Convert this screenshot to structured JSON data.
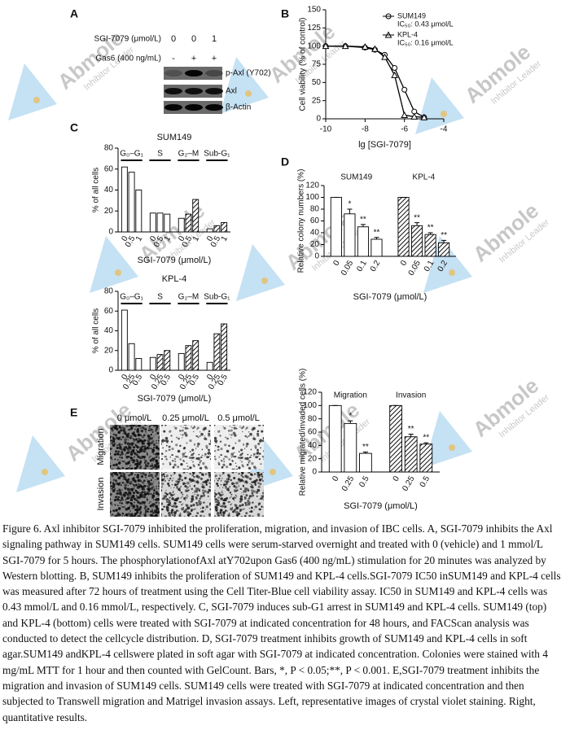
{
  "panel_a": {
    "label": "A",
    "row_labels": [
      "SGI-7079 (μmol/L)",
      "Gas6 (400 ng/mL)"
    ],
    "columns": [
      [
        "0",
        "0",
        "1"
      ],
      [
        "-",
        "+",
        "+"
      ]
    ],
    "bands": [
      "p-Axl (Y702)",
      "Axl",
      "β-Actin"
    ]
  },
  "chart_data": [
    {
      "type": "line",
      "panel_label": "B",
      "xlabel": "lg [SGI-7079]",
      "ylabel": "Cell viability (% of control)",
      "x": [
        -10,
        -9,
        -8,
        -7.5,
        -7,
        -6.5,
        -6,
        -5.5,
        -5
      ],
      "series": [
        {
          "name": "SUM149",
          "note": "IC₅₀: 0.43 μmol/L",
          "marker": "circle",
          "color": "#000000",
          "values": [
            100,
            100,
            98,
            95,
            88,
            70,
            40,
            10,
            2
          ]
        },
        {
          "name": "KPL-4",
          "note": "IC₅₀: 0.16 μmol/L",
          "marker": "triangle",
          "color": "#000000",
          "values": [
            100,
            100,
            99,
            96,
            85,
            60,
            5,
            3,
            2
          ]
        }
      ],
      "xlim": [
        -10,
        -4
      ],
      "xticks": [
        -10,
        -8,
        -6,
        -4
      ],
      "ylim": [
        0,
        150
      ],
      "yticks": [
        0,
        25,
        50,
        75,
        100,
        125,
        150
      ],
      "legend": "upper right"
    },
    {
      "type": "bar",
      "panel_label": "C",
      "title": "SUM149",
      "xlabel": "SGI-7079 (μmol/L)",
      "ylabel": "% of all cells",
      "ylim": [
        0,
        80
      ],
      "yticks": [
        0,
        20,
        40,
        60,
        80
      ],
      "group_rule": true,
      "groups": [
        {
          "name": "G₀–G₁",
          "categories": [
            "0",
            "0.5",
            "1"
          ],
          "values": [
            62,
            57,
            40
          ],
          "fills": [
            "white",
            "white",
            "white"
          ]
        },
        {
          "name": "S",
          "categories": [
            "0",
            "0.5",
            "1"
          ],
          "values": [
            18,
            18,
            17
          ],
          "fills": [
            "white",
            "white",
            "white"
          ]
        },
        {
          "name": "G₂–M",
          "categories": [
            "0",
            "0.5",
            "1"
          ],
          "values": [
            13,
            17,
            31
          ],
          "fills": [
            "white",
            "hatch",
            "hatch"
          ]
        },
        {
          "name": "Sub-G₁",
          "categories": [
            "0",
            "0.5",
            "1"
          ],
          "values": [
            3,
            6,
            9
          ],
          "fills": [
            "white",
            "hatch",
            "hatch"
          ]
        }
      ]
    },
    {
      "type": "bar",
      "title": "KPL-4",
      "xlabel": "SGI-7079 (μmol/L)",
      "ylabel": "% of all cells",
      "ylim": [
        0,
        80
      ],
      "yticks": [
        0,
        20,
        40,
        60,
        80
      ],
      "group_rule": true,
      "groups": [
        {
          "name": "G₀–G₁",
          "categories": [
            "0",
            "0.25",
            "0.5"
          ],
          "values": [
            61,
            27,
            12
          ],
          "fills": [
            "white",
            "white",
            "white"
          ]
        },
        {
          "name": "S",
          "categories": [
            "0",
            "0.25",
            "0.5"
          ],
          "values": [
            13,
            16,
            20
          ],
          "fills": [
            "white",
            "hatch",
            "hatch"
          ]
        },
        {
          "name": "G₂–M",
          "categories": [
            "0",
            "0.25",
            "0.5"
          ],
          "values": [
            17,
            25,
            30
          ],
          "fills": [
            "white",
            "hatch",
            "hatch"
          ]
        },
        {
          "name": "Sub-G₁",
          "categories": [
            "0",
            "0.25",
            "0.5"
          ],
          "values": [
            8,
            37,
            47
          ],
          "fills": [
            "white",
            "hatch",
            "hatch"
          ]
        }
      ]
    },
    {
      "type": "bar",
      "panel_label": "D",
      "xlabel": "SGI-7079 (μmol/L)",
      "ylabel": "Relative colony numbers (%)",
      "ylim": [
        0,
        120
      ],
      "yticks": [
        0,
        20,
        40,
        60,
        80,
        100,
        120
      ],
      "group_rule": false,
      "groups": [
        {
          "name": "SUM149",
          "categories": [
            "0",
            "0.05",
            "0.1",
            "0.2"
          ],
          "values": [
            100,
            72,
            50,
            29
          ],
          "errors": [
            0,
            8,
            4,
            3
          ],
          "labels": [
            null,
            "*",
            "**",
            "**"
          ],
          "fills": [
            "white",
            "white",
            "white",
            "white"
          ]
        },
        {
          "name": "KPL-4",
          "categories": [
            "0",
            "0.05",
            "0.1",
            "0.2"
          ],
          "values": [
            100,
            52,
            37,
            23
          ],
          "errors": [
            0,
            5,
            3,
            4
          ],
          "labels": [
            null,
            "**",
            "**",
            "**"
          ],
          "fills": [
            "hatch",
            "hatch",
            "hatch",
            "hatch"
          ]
        }
      ]
    },
    {
      "type": "bar",
      "xlabel": "SGI-7079 (μmol/L)",
      "ylabel": "Relative migrated/invaded cells (%)",
      "ylim": [
        0,
        120
      ],
      "yticks": [
        0,
        20,
        40,
        60,
        80,
        100,
        120
      ],
      "group_rule": false,
      "groups": [
        {
          "name": "Migration",
          "categories": [
            "0",
            "0.25",
            "0.5"
          ],
          "values": [
            100,
            73,
            28
          ],
          "errors": [
            0,
            4,
            2
          ],
          "labels": [
            null,
            "*",
            "**"
          ],
          "fills": [
            "white",
            "white",
            "white"
          ]
        },
        {
          "name": "Invasion",
          "categories": [
            "0",
            "0.25",
            "0.5"
          ],
          "values": [
            100,
            53,
            42
          ],
          "errors": [
            0,
            4,
            2
          ],
          "labels": [
            null,
            "**",
            "**"
          ],
          "fills": [
            "hatch",
            "hatch",
            "hatch"
          ]
        }
      ]
    }
  ],
  "panel_e": {
    "label": "E",
    "columns": [
      "0 μmol/L",
      "0.25 μmol/L",
      "0.5 μmol/L"
    ],
    "rows": [
      "Migration",
      "Invasion"
    ]
  },
  "watermark": {
    "brand": "Abmole",
    "tagline": "Inhibitor Leader"
  },
  "caption": "Figure 6. Axl inhibitor SGI-7079 inhibited the proliferation, migration, and invasion of IBC cells. A, SGI-7079 inhibits the Axl signaling pathway in SUM149 cells. SUM149 cells were serum-starved overnight and treated with 0 (vehicle) and 1 mmol/L SGI-7079 for 5 hours. The phosphorylationofAxl atY702upon Gas6 (400 ng/mL) stimulation for 20 minutes was analyzed by Western blotting. B, SUM149 inhibits the proliferation of SUM149 and KPL-4 cells.SGI-7079 IC50 inSUM149 and KPL-4 cells was measured after 72 hours of treatment using the Cell Titer-Blue cell viability assay. IC50 in SUM149 and KPL-4 cells was 0.43 mmol/L and 0.16 mmol/L, respectively. C, SGI-7079 induces sub-G1 arrest in SUM149 and KPL-4 cells. SUM149 (top) and KPL-4 (bottom) cells were treated with SGI-7079 at indicated concentration for 48 hours, and FACScan analysis was conducted to detect the cellcycle distribution. D, SGI-7079 treatment inhibits growth of SUM149 and KPL-4 cells in soft agar.SUM149 andKPL-4 cellswere plated in soft agar with SGI-7079 at indicated concentration. Colonies were stained with 4 mg/mL MTT for 1 hour and then counted with GelCount. Bars, *, P < 0.05;**, P < 0.001. E,SGI-7079 treatment inhibits the migration and invasion of SUM149 cells. SUM149 cells were treated with SGI-7079 at indicated concentration and then subjected to Transwell migration and Matrigel invasion assays. Left, representative images of crystal violet staining. Right, quantitative results."
}
